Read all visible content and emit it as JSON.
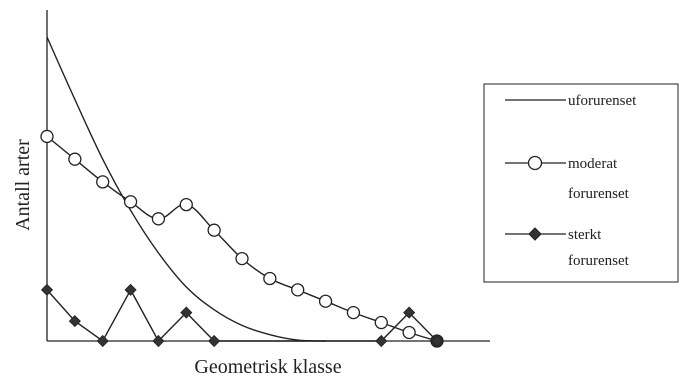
{
  "chart_data": {
    "type": "line",
    "title": "",
    "xlabel": "Geometrisk klasse",
    "ylabel": "Antall arter",
    "x_ticks": false,
    "y_ticks": false,
    "grid": false,
    "xlim": [
      0,
      14.3
    ],
    "ylim": [
      0,
      10.7
    ],
    "legend_position": "right",
    "series": [
      {
        "name": "uforurenset",
        "style": "line",
        "marker": "none",
        "color": "#222222",
        "x": [
          0,
          1,
          2,
          3,
          4,
          5,
          6,
          7,
          8,
          9,
          10
        ],
        "y": [
          10.7,
          8.5,
          6.4,
          4.6,
          3.1,
          1.9,
          1.1,
          0.55,
          0.22,
          0.03,
          0
        ]
      },
      {
        "name": "moderat forurenset",
        "style": "line",
        "marker": "open-circle",
        "color": "#222222",
        "x": [
          0,
          1,
          2,
          3,
          4,
          5,
          6,
          7,
          8,
          9,
          10,
          11,
          12,
          13,
          14
        ],
        "y": [
          7.2,
          6.4,
          5.6,
          4.9,
          4.3,
          4.8,
          3.9,
          2.9,
          2.2,
          1.8,
          1.4,
          1.0,
          0.65,
          0.3,
          0
        ]
      },
      {
        "name": "sterkt forurenset",
        "style": "line",
        "marker": "filled-diamond",
        "color": "#222222",
        "x": [
          0,
          1,
          2,
          3,
          4,
          5,
          6,
          12,
          13,
          14
        ],
        "y": [
          1.8,
          0.7,
          0,
          1.8,
          0,
          1.0,
          0,
          0,
          1.0,
          0
        ]
      }
    ]
  },
  "legend": {
    "items": [
      {
        "label_line1": "uforurenset",
        "label_line2": ""
      },
      {
        "label_line1": "moderat",
        "label_line2": "forurenset"
      },
      {
        "label_line1": "sterkt",
        "label_line2": "forurenset"
      }
    ]
  }
}
